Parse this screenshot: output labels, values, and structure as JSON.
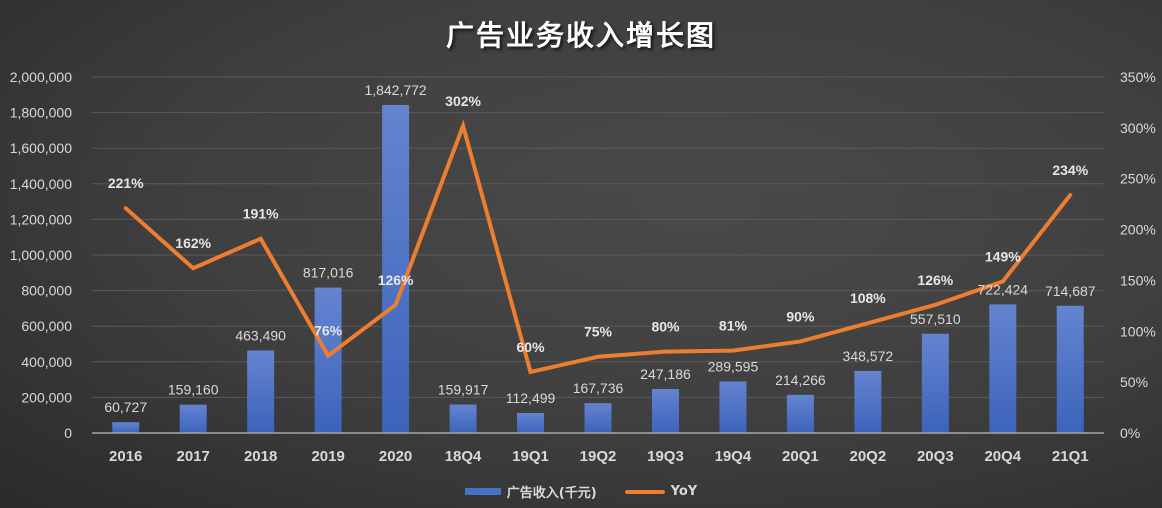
{
  "chart_data": {
    "type": "bar",
    "title": "广告业务收入增长图",
    "categories": [
      "2016",
      "2017",
      "2018",
      "2019",
      "2020",
      "18Q4",
      "19Q1",
      "19Q2",
      "19Q3",
      "19Q4",
      "20Q1",
      "20Q2",
      "20Q3",
      "20Q4",
      "21Q1"
    ],
    "series": [
      {
        "name": "广告收入(千元)",
        "type": "bar",
        "axis": "left",
        "color": "#4472c4",
        "values": [
          60727,
          159160,
          463490,
          817016,
          1842772,
          159917,
          112499,
          167736,
          247186,
          289595,
          214266,
          348572,
          557510,
          722424,
          714687
        ],
        "labels": [
          "60,727",
          "159,160",
          "463,490",
          "817,016",
          "1,842,772",
          "159,917",
          "112,499",
          "167,736",
          "247,186",
          "289,595",
          "214,266",
          "348,572",
          "557,510",
          "722,424",
          "714,687"
        ]
      },
      {
        "name": "YoY",
        "type": "line",
        "axis": "right",
        "color": "#ed7d31",
        "values": [
          221,
          162,
          191,
          76,
          126,
          302,
          60,
          75,
          80,
          81,
          90,
          108,
          126,
          149,
          234
        ],
        "labels": [
          "221%",
          "162%",
          "191%",
          "76%",
          "126%",
          "302%",
          "60%",
          "75%",
          "80%",
          "81%",
          "90%",
          "108%",
          "126%",
          "149%",
          "234%"
        ]
      }
    ],
    "left_axis": {
      "ylim": [
        0,
        2000000
      ],
      "ticks": [
        "0",
        "200,000",
        "400,000",
        "600,000",
        "800,000",
        "1,000,000",
        "1,200,000",
        "1,400,000",
        "1,600,000",
        "1,800,000",
        "2,000,000"
      ]
    },
    "right_axis": {
      "ylim": [
        0,
        350
      ],
      "ticks": [
        "0%",
        "50%",
        "100%",
        "150%",
        "200%",
        "250%",
        "300%",
        "350%"
      ]
    },
    "xlabel": "",
    "ylabel": "",
    "grid": true,
    "legend_position": "bottom"
  },
  "legend": {
    "bar_label": "广告收入(千元)",
    "line_label": "YoY"
  }
}
